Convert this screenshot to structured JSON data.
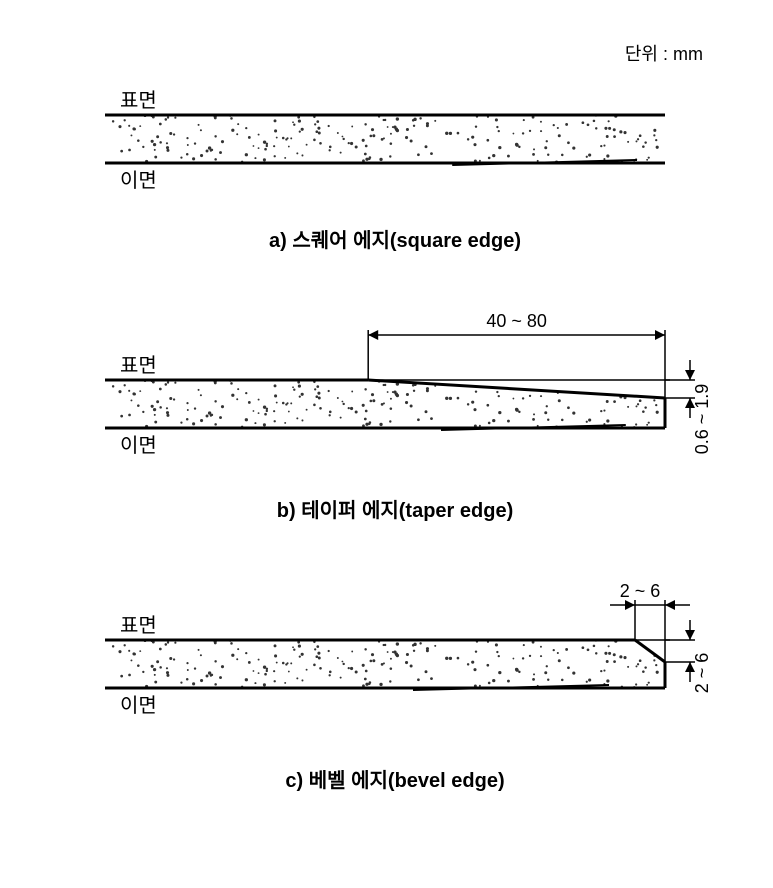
{
  "unit_label": "단위 : mm",
  "labels": {
    "surface": "표면",
    "back": "이면"
  },
  "figA": {
    "caption_prefix": "a)",
    "caption_kr": "스퀘어 에지",
    "caption_en": "(square edge)"
  },
  "figB": {
    "caption_prefix": "b)",
    "caption_kr": "테이퍼 에지",
    "caption_en": "(taper edge)",
    "dim_h": "40 ~ 80",
    "dim_v": "0.6 ~ 1.9"
  },
  "figC": {
    "caption_prefix": "c)",
    "caption_kr": "베벨 에지",
    "caption_en": "(bevel edge)",
    "dim_h": "2 ~ 6",
    "dim_v": "2 ~ 6"
  },
  "style": {
    "thick_stroke": 3,
    "thin_stroke": 1.5,
    "stipple_color": "#333333",
    "line_color": "#000000",
    "board_width": 560,
    "board_height": 48,
    "font_label": 20,
    "font_caption": 20,
    "font_dim": 18
  }
}
